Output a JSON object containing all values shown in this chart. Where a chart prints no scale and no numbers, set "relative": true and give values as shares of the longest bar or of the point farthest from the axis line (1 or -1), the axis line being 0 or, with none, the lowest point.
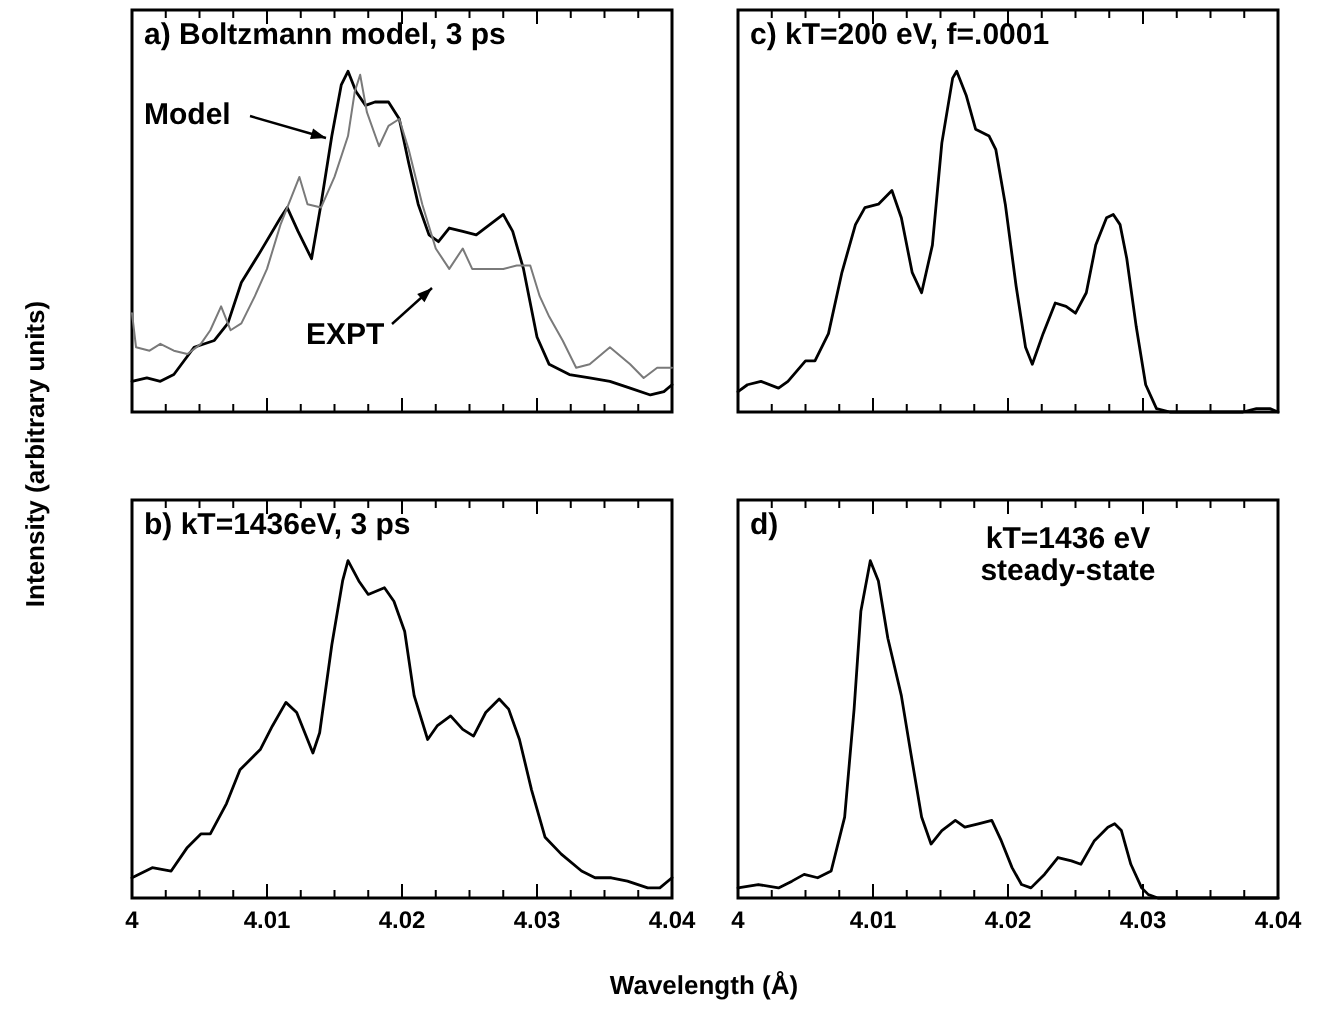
{
  "chart_data": [
    {
      "type": "line",
      "title": "a) Boltzmann model, 3 ps",
      "ylabel": "Intensity (arbitrary units)",
      "relative": true,
      "xlim": [
        4,
        4.04
      ],
      "tick_labels": false,
      "xticks": [
        4,
        {
          "value": 4.0025,
          "label": null
        },
        {
          "value": 4.005,
          "label": null
        },
        {
          "value": 4.0075,
          "label": null
        },
        4.01,
        {
          "value": 4.0125,
          "label": null
        },
        {
          "value": 4.015,
          "label": null
        },
        {
          "value": 4.0175,
          "label": null
        },
        4.02,
        {
          "value": 4.0225,
          "label": null
        },
        {
          "value": 4.025,
          "label": null
        },
        {
          "value": 4.0275,
          "label": null
        },
        4.03,
        {
          "value": 4.0325,
          "label": null
        },
        {
          "value": 4.035,
          "label": null
        },
        {
          "value": 4.0375,
          "label": null
        },
        4.04
      ],
      "annotations": [
        "Model",
        "EXPT"
      ],
      "series": [
        {
          "color": "#000000",
          "x": [
            4,
            4.0011,
            4.0021,
            4.0031,
            4.0046,
            4.0061,
            4.0071,
            4.0081,
            4.0095,
            4.011,
            4.0115,
            4.0123,
            4.0133,
            4.014,
            4.0148,
            4.0155,
            4.016,
            4.0166,
            4.0173,
            4.018,
            4.019,
            4.0198,
            4.0205,
            4.0212,
            4.022,
            4.0227,
            4.0235,
            4.0245,
            4.0255,
            4.0265,
            4.0275,
            4.0282,
            4.029,
            4.03,
            4.0309,
            4.0324,
            4.0339,
            4.0354,
            4.0369,
            4.0384,
            4.0394,
            4.04
          ],
          "values": [
            0.09,
            0.1,
            0.09,
            0.11,
            0.19,
            0.21,
            0.26,
            0.38,
            0.47,
            0.57,
            0.6,
            0.53,
            0.45,
            0.61,
            0.81,
            0.96,
            1,
            0.94,
            0.9,
            0.91,
            0.91,
            0.86,
            0.73,
            0.61,
            0.52,
            0.5,
            0.54,
            0.53,
            0.52,
            0.55,
            0.58,
            0.53,
            0.42,
            0.22,
            0.14,
            0.11,
            0.1,
            0.09,
            0.07,
            0.05,
            0.06,
            0.08
          ]
        },
        {
          "color": "#7a7a7a",
          "x": [
            4,
            4.0003,
            4.0013,
            4.0021,
            4.0031,
            4.0041,
            4.0051,
            4.0058,
            4.0066,
            4.0073,
            4.0081,
            4.0091,
            4.01,
            4.011,
            4.0118,
            4.0124,
            4.013,
            4.014,
            4.015,
            4.016,
            4.0165,
            4.0169,
            4.0174,
            4.0183,
            4.019,
            4.0198,
            4.0205,
            4.0215,
            4.0225,
            4.0235,
            4.0245,
            4.0252,
            4.0262,
            4.0275,
            4.0285,
            4.0295,
            4.0302,
            4.0309,
            4.0319,
            4.0329,
            4.0339,
            4.0354,
            4.0369,
            4.0379,
            4.0389,
            4.04
          ],
          "values": [
            0.29,
            0.19,
            0.18,
            0.2,
            0.18,
            0.17,
            0.2,
            0.24,
            0.31,
            0.24,
            0.26,
            0.34,
            0.42,
            0.55,
            0.63,
            0.69,
            0.61,
            0.6,
            0.69,
            0.81,
            0.94,
            0.99,
            0.88,
            0.78,
            0.84,
            0.86,
            0.77,
            0.61,
            0.48,
            0.42,
            0.48,
            0.42,
            0.42,
            0.42,
            0.43,
            0.43,
            0.34,
            0.28,
            0.21,
            0.13,
            0.14,
            0.19,
            0.14,
            0.1,
            0.13,
            0.13
          ]
        }
      ]
    },
    {
      "type": "line",
      "title": "c) kT=200 eV, f=.0001",
      "relative": true,
      "xlim": [
        4,
        4.04
      ],
      "tick_labels": false,
      "xticks": [
        4,
        {
          "value": 4.0025,
          "label": null
        },
        {
          "value": 4.005,
          "label": null
        },
        {
          "value": 4.0075,
          "label": null
        },
        4.01,
        {
          "value": 4.0125,
          "label": null
        },
        {
          "value": 4.015,
          "label": null
        },
        {
          "value": 4.0175,
          "label": null
        },
        4.02,
        {
          "value": 4.0225,
          "label": null
        },
        {
          "value": 4.025,
          "label": null
        },
        {
          "value": 4.0275,
          "label": null
        },
        4.03,
        {
          "value": 4.0325,
          "label": null
        },
        {
          "value": 4.035,
          "label": null
        },
        {
          "value": 4.0375,
          "label": null
        },
        4.04
      ],
      "series": [
        {
          "color": "#000000",
          "x": [
            4,
            4.0007,
            4.0017,
            4.003,
            4.0037,
            4.005,
            4.0057,
            4.0067,
            4.0077,
            4.0087,
            4.0094,
            4.0104,
            4.0114,
            4.0121,
            4.0129,
            4.0136,
            4.0144,
            4.0151,
            4.0159,
            4.0162,
            4.0169,
            4.0176,
            4.0186,
            4.0191,
            4.0198,
            4.0206,
            4.0213,
            4.0218,
            4.0226,
            4.0235,
            4.0243,
            4.025,
            4.0258,
            4.0265,
            4.0273,
            4.0278,
            4.0283,
            4.0288,
            4.0295,
            4.0302,
            4.031,
            4.032,
            4.0374,
            4.0384,
            4.0394,
            4.04
          ],
          "values": [
            0.06,
            0.08,
            0.09,
            0.07,
            0.09,
            0.15,
            0.15,
            0.23,
            0.41,
            0.55,
            0.6,
            0.61,
            0.65,
            0.57,
            0.41,
            0.35,
            0.49,
            0.79,
            0.98,
            1,
            0.93,
            0.83,
            0.81,
            0.77,
            0.61,
            0.37,
            0.19,
            0.14,
            0.23,
            0.32,
            0.31,
            0.29,
            0.35,
            0.49,
            0.57,
            0.58,
            0.55,
            0.45,
            0.25,
            0.08,
            0.01,
            0,
            0,
            0.01,
            0.01,
            0
          ]
        }
      ]
    },
    {
      "type": "line",
      "title": "b) kT=1436eV, 3 ps",
      "xlabel": "Wavelength (Å)",
      "relative": true,
      "xlim": [
        4,
        4.04
      ],
      "tick_labels": "x",
      "xticks": [
        4,
        {
          "value": 4.0025,
          "label": null
        },
        {
          "value": 4.005,
          "label": null
        },
        {
          "value": 4.0075,
          "label": null
        },
        4.01,
        {
          "value": 4.0125,
          "label": null
        },
        {
          "value": 4.015,
          "label": null
        },
        {
          "value": 4.0175,
          "label": null
        },
        4.02,
        {
          "value": 4.0225,
          "label": null
        },
        {
          "value": 4.025,
          "label": null
        },
        {
          "value": 4.0275,
          "label": null
        },
        4.03,
        {
          "value": 4.0325,
          "label": null
        },
        {
          "value": 4.035,
          "label": null
        },
        {
          "value": 4.0375,
          "label": null
        },
        4.04
      ],
      "series": [
        {
          "color": "#000000",
          "x": [
            4,
            4.0015,
            4.0029,
            4.0041,
            4.0051,
            4.0058,
            4.007,
            4.008,
            4.0095,
            4.0104,
            4.0114,
            4.0122,
            4.0134,
            4.0139,
            4.0148,
            4.0156,
            4.016,
            4.0168,
            4.0175,
            4.0187,
            4.0194,
            4.0202,
            4.0209,
            4.0219,
            4.0226,
            4.0236,
            4.0245,
            4.0253,
            4.0262,
            4.0272,
            4.0279,
            4.0287,
            4.0296,
            4.0306,
            4.0318,
            4.0333,
            4.0343,
            4.0355,
            4.0367,
            4.0382,
            4.0391,
            4.04
          ],
          "values": [
            0.06,
            0.09,
            0.08,
            0.15,
            0.19,
            0.19,
            0.28,
            0.38,
            0.44,
            0.51,
            0.58,
            0.55,
            0.43,
            0.49,
            0.75,
            0.94,
            1,
            0.94,
            0.9,
            0.92,
            0.88,
            0.79,
            0.6,
            0.47,
            0.51,
            0.54,
            0.5,
            0.48,
            0.55,
            0.59,
            0.56,
            0.47,
            0.32,
            0.18,
            0.13,
            0.08,
            0.06,
            0.06,
            0.05,
            0.03,
            0.03,
            0.06
          ]
        }
      ]
    },
    {
      "type": "line",
      "title": "d)",
      "relative": true,
      "xlim": [
        4,
        4.04
      ],
      "tick_labels": "x",
      "annotations": [
        "kT=1436 eV",
        "steady-state"
      ],
      "xticks": [
        4,
        {
          "value": 4.0025,
          "label": null
        },
        {
          "value": 4.005,
          "label": null
        },
        {
          "value": 4.0075,
          "label": null
        },
        4.01,
        {
          "value": 4.0125,
          "label": null
        },
        {
          "value": 4.015,
          "label": null
        },
        {
          "value": 4.0175,
          "label": null
        },
        4.02,
        {
          "value": 4.0225,
          "label": null
        },
        {
          "value": 4.025,
          "label": null
        },
        {
          "value": 4.0275,
          "label": null
        },
        4.03,
        {
          "value": 4.0325,
          "label": null
        },
        {
          "value": 4.035,
          "label": null
        },
        {
          "value": 4.0375,
          "label": null
        },
        4.04
      ],
      "series": [
        {
          "color": "#000000",
          "x": [
            4,
            4.0015,
            4.003,
            4.004,
            4.0049,
            4.0059,
            4.0069,
            4.0079,
            4.0086,
            4.0091,
            4.0098,
            4.0104,
            4.0111,
            4.0121,
            4.0128,
            4.0136,
            4.0143,
            4.0151,
            4.0161,
            4.0168,
            4.0178,
            4.0188,
            4.0195,
            4.0203,
            4.021,
            4.0217,
            4.0227,
            4.0237,
            4.0247,
            4.0254,
            4.0264,
            4.0274,
            4.0279,
            4.0284,
            4.0291,
            4.0299,
            4.0304,
            4.0311,
            4.0331,
            4.038,
            4.04
          ],
          "values": [
            0.03,
            0.04,
            0.03,
            0.05,
            0.07,
            0.06,
            0.08,
            0.24,
            0.56,
            0.85,
            1,
            0.94,
            0.77,
            0.6,
            0.43,
            0.24,
            0.16,
            0.2,
            0.23,
            0.21,
            0.22,
            0.23,
            0.17,
            0.09,
            0.04,
            0.03,
            0.07,
            0.12,
            0.11,
            0.1,
            0.17,
            0.21,
            0.22,
            0.2,
            0.1,
            0.03,
            0.01,
            0,
            0,
            0,
            0
          ]
        }
      ]
    }
  ]
}
